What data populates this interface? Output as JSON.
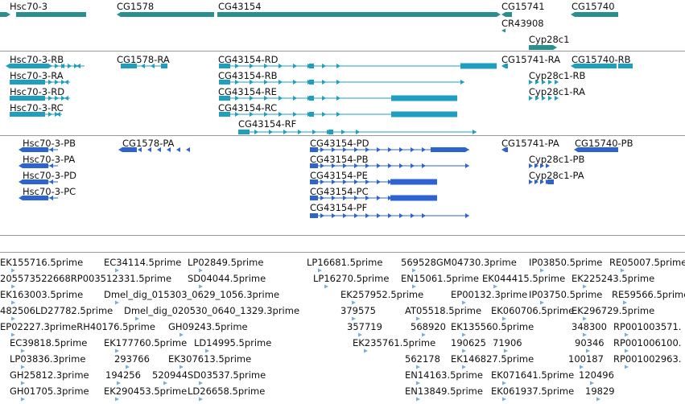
{
  "colors": {
    "gene": "#2a8f8f",
    "transcript": "#1f9fbf",
    "protein": "#2d64d2",
    "est": "#79aedc",
    "separator": "#9a9a9a"
  },
  "gene_track": {
    "labels": [
      "Hsc70-3",
      "CG1578",
      "CG43154",
      "CG15741",
      "CG15740",
      "CR43908",
      "Cyp28c1"
    ]
  },
  "transcript_track": {
    "labels": [
      "Hsc70-3-RB",
      "Hsc70-3-RA",
      "Hsc70-3-RD",
      "Hsc70-3-RC",
      "CG1578-RA",
      "CG43154-RD",
      "CG43154-RB",
      "CG43154-RE",
      "CG43154-RC",
      "CG43154-RF",
      "CG15741-RA",
      "CG15740-RB",
      "Cyp28c1-RB",
      "Cyp28c1-RA"
    ]
  },
  "protein_track": {
    "labels": [
      "Hsc70-3-PB",
      "Hsc70-3-PA",
      "Hsc70-3-PD",
      "Hsc70-3-PC",
      "CG1578-PA",
      "CG43154-PD",
      "CG43154-PB",
      "CG43154-PE",
      "CG43154-PC",
      "CG43154-PF",
      "CG15741-PA",
      "CG15740-PB",
      "Cyp28c1-PB",
      "Cyp28c1-PA"
    ]
  },
  "est_track": {
    "labels": [
      "EK155716.5prime",
      "EC34114.5prime",
      "LP02849.5prime",
      "LP16681.5prime",
      "569528GM04730.3prime",
      "IP03850.5prime",
      "RE05007.5prime",
      "205573522668RP003512331.5prime",
      "SD04044.5prime",
      "LP16270.5prime",
      "EN15061.5prime",
      "EK044415.5prime",
      "EK225243.5prime",
      "EK163003.5prime",
      "Dmel_dig_015303_0629_1056.3prime",
      "EK257952.5prime",
      "EP00132.3prime",
      "IP03750.5prime",
      "RE59566.5prime",
      "482506LD27782.5prime",
      "Dmel_dig_020530_0640_1329.3prime",
      "379575",
      "AT05518.5prime",
      "EK060706.5prime",
      "EK296729.5prime",
      "EP02227.3primeRH40176.5prime",
      "GH09243.5prime",
      "357719",
      "568920",
      "EK135560.5prime",
      "348300",
      "RP001003571.",
      "EC39818.5prime",
      "EK177760.5prime",
      "LD14995.5prime",
      "190625",
      "71906",
      "90346",
      "RP001006100.",
      "LP03836.3prime",
      "293766",
      "EK307613.5prime",
      "EK235761.5prime",
      "100187",
      "RP001002963.",
      "GH25812.3prime",
      "194256",
      "520944",
      "SD03537.5prime",
      "562178",
      "EK146827.5prime",
      "GH01705.3prime",
      "EK290453.5prime",
      "LD26658.5prime",
      "EN14163.5prime",
      "EK071641.5prime",
      "120496",
      "EN13849.5prime",
      "EK061937.5prime",
      "19829"
    ]
  }
}
